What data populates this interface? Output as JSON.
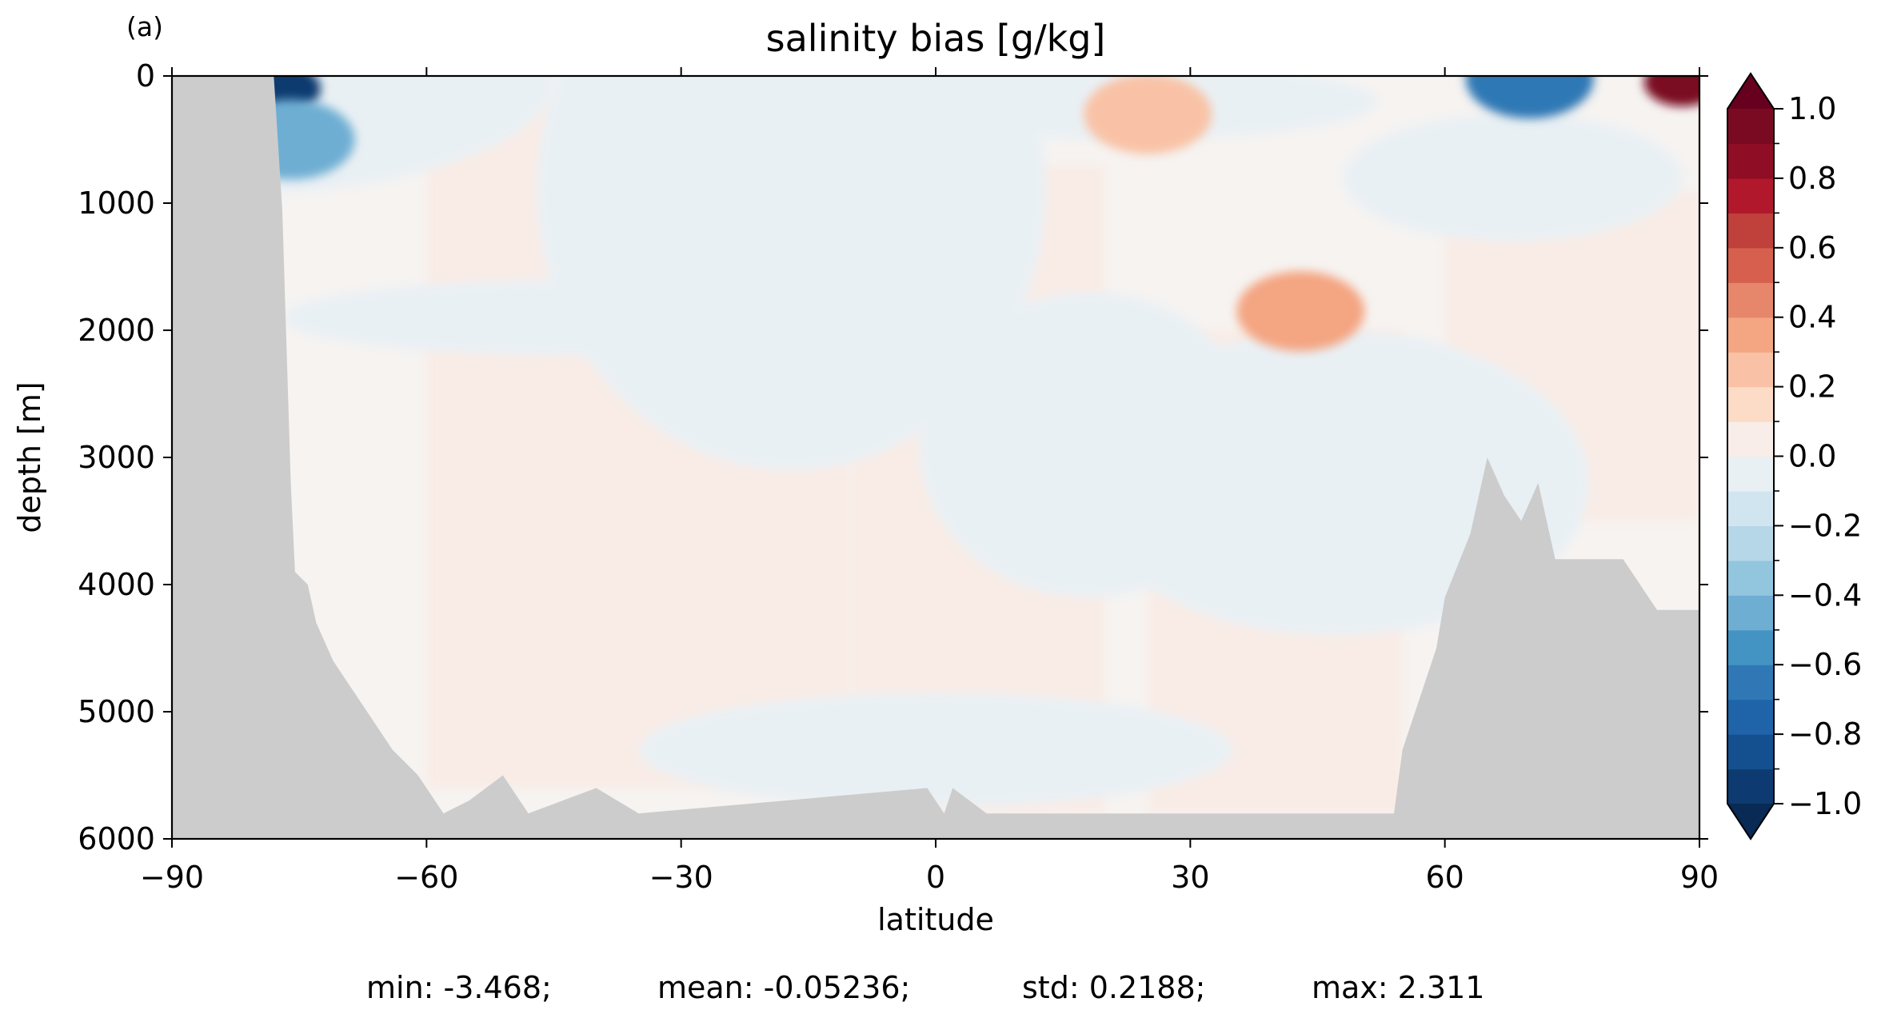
{
  "chart_data": {
    "type": "heatmap",
    "panel_label": "(a)",
    "title": "salinity bias [g/kg]",
    "xlabel": "latitude",
    "ylabel": "depth [m]",
    "xlim": [
      -90,
      90
    ],
    "ylim": [
      6000,
      0
    ],
    "y_inverted": true,
    "x_ticks": [
      -90,
      -60,
      -30,
      0,
      30,
      60,
      90
    ],
    "x_tick_labels": [
      "−90",
      "−60",
      "−30",
      "0",
      "30",
      "60",
      "90"
    ],
    "y_ticks": [
      0,
      1000,
      2000,
      3000,
      4000,
      5000,
      6000
    ],
    "y_tick_labels": [
      "0",
      "1000",
      "2000",
      "3000",
      "4000",
      "5000",
      "6000"
    ],
    "grid": false,
    "colorbar": {
      "range": [
        -1.0,
        1.0
      ],
      "levels": [
        -1.0,
        -0.9,
        -0.8,
        -0.7,
        -0.6,
        -0.5,
        -0.4,
        -0.3,
        -0.2,
        -0.1,
        0.0,
        0.1,
        0.2,
        0.3,
        0.4,
        0.5,
        0.6,
        0.7,
        0.8,
        0.9,
        1.0
      ],
      "extend": "both",
      "ticks": [
        -1.0,
        -0.8,
        -0.6,
        -0.4,
        -0.2,
        0.0,
        0.2,
        0.4,
        0.6,
        0.8,
        1.0
      ],
      "tick_labels": [
        "−1.0",
        "−0.8",
        "−0.6",
        "−0.4",
        "−0.2",
        "0.0",
        "0.2",
        "0.4",
        "0.6",
        "0.8",
        "1.0"
      ],
      "colors": [
        "#0d3a70",
        "#14508f",
        "#1f63a8",
        "#2f78b5",
        "#4393c3",
        "#6eaed3",
        "#92c5de",
        "#b5d7e8",
        "#d1e5f0",
        "#e9f0f4",
        "#f8ede8",
        "#fcdbc7",
        "#f9c2a6",
        "#f4a582",
        "#e6866a",
        "#d6604d",
        "#c0403c",
        "#b2182b",
        "#8f0d25",
        "#7a0a22"
      ],
      "under_color": "#082a54",
      "over_color": "#67001f"
    },
    "land_color": "#cccccc",
    "bathymetry_max_depth": [
      [
        -90,
        0
      ],
      [
        -78,
        0
      ],
      [
        -77,
        1050
      ],
      [
        -76,
        3200
      ],
      [
        -75.5,
        3900
      ],
      [
        -74,
        4000
      ],
      [
        -73,
        4300
      ],
      [
        -71,
        4600
      ],
      [
        -69,
        4800
      ],
      [
        -67,
        5000
      ],
      [
        -64,
        5300
      ],
      [
        -61,
        5500
      ],
      [
        -58,
        5800
      ],
      [
        -55,
        5700
      ],
      [
        -51,
        5500
      ],
      [
        -48,
        5800
      ],
      [
        -40,
        5600
      ],
      [
        -35,
        5800
      ],
      [
        -1,
        5600
      ],
      [
        1,
        5800
      ],
      [
        2,
        5600
      ],
      [
        6,
        5800
      ],
      [
        54,
        5800
      ],
      [
        55,
        5300
      ],
      [
        57,
        4900
      ],
      [
        59,
        4500
      ],
      [
        60,
        4100
      ],
      [
        63,
        3600
      ],
      [
        65,
        3000
      ],
      [
        67,
        3300
      ],
      [
        69,
        3500
      ],
      [
        71,
        3200
      ],
      [
        73,
        3800
      ],
      [
        76,
        3800
      ],
      [
        81,
        3800
      ],
      [
        83,
        4000
      ],
      [
        85,
        4200
      ],
      [
        90,
        4200
      ]
    ],
    "field_anomalies": [
      {
        "lat": -77,
        "depth": 100,
        "value": -0.9
      },
      {
        "lat": -76,
        "depth": 500,
        "value": -0.4
      },
      {
        "lat": 25,
        "depth": 300,
        "value": 0.3
      },
      {
        "lat": 43,
        "depth": 1850,
        "value": 0.4
      },
      {
        "lat": 88,
        "depth": 50,
        "value": 1.0
      },
      {
        "lat": 70,
        "depth": 20,
        "value": -0.6
      }
    ],
    "stats": {
      "min": "min: -3.468;",
      "mean": "mean: -0.05236;",
      "std": "std: 0.2188;",
      "max": "max: 2.311"
    }
  }
}
